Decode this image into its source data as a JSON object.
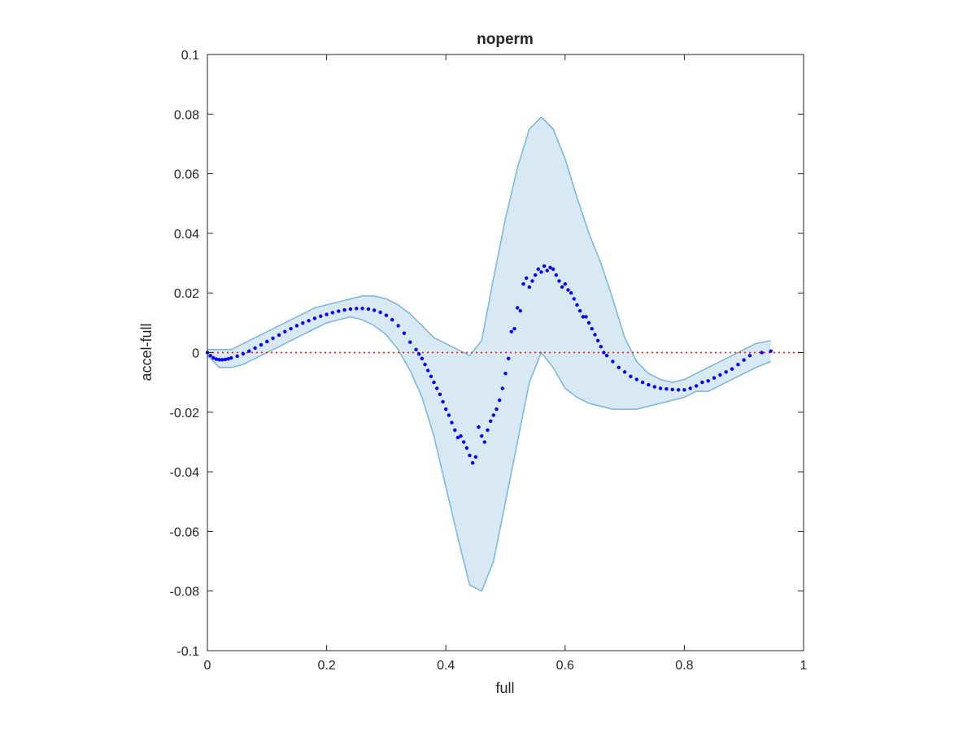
{
  "chart_data": {
    "type": "scatter",
    "title": "noperm",
    "xlabel": "full",
    "ylabel": "accel-full",
    "xlim": [
      0,
      1
    ],
    "ylim": [
      -0.1,
      0.1
    ],
    "xticks": [
      0,
      0.2,
      0.4,
      0.6,
      0.8,
      1
    ],
    "xtick_labels": [
      "0",
      "0.2",
      "0.4",
      "0.6",
      "0.8",
      "1"
    ],
    "yticks": [
      -0.1,
      -0.08,
      -0.06,
      -0.04,
      -0.02,
      0,
      0.02,
      0.04,
      0.06,
      0.08,
      0.1
    ],
    "ytick_labels": [
      "-0.1",
      "-0.08",
      "-0.06",
      "-0.04",
      "-0.02",
      "0",
      "0.02",
      "0.04",
      "0.06",
      "0.08",
      "0.1"
    ],
    "grid": false,
    "legend": "none",
    "reference_line": {
      "y": 0,
      "style": "dotted",
      "color": "#ff0000"
    },
    "series": [
      {
        "kind": "points",
        "color": "#0000ff",
        "x": [
          0.0,
          0.005,
          0.01,
          0.015,
          0.02,
          0.025,
          0.03,
          0.035,
          0.04,
          0.05,
          0.06,
          0.07,
          0.08,
          0.09,
          0.1,
          0.11,
          0.12,
          0.13,
          0.14,
          0.15,
          0.16,
          0.17,
          0.18,
          0.19,
          0.2,
          0.21,
          0.22,
          0.23,
          0.24,
          0.25,
          0.26,
          0.27,
          0.28,
          0.29,
          0.3,
          0.31,
          0.32,
          0.33,
          0.34,
          0.35,
          0.355,
          0.36,
          0.365,
          0.37,
          0.375,
          0.38,
          0.385,
          0.39,
          0.395,
          0.4,
          0.405,
          0.41,
          0.415,
          0.42,
          0.425,
          0.43,
          0.435,
          0.44,
          0.445,
          0.45,
          0.455,
          0.46,
          0.465,
          0.47,
          0.475,
          0.48,
          0.485,
          0.49,
          0.495,
          0.5,
          0.505,
          0.51,
          0.515,
          0.52,
          0.525,
          0.53,
          0.535,
          0.54,
          0.545,
          0.55,
          0.555,
          0.56,
          0.565,
          0.57,
          0.575,
          0.58,
          0.585,
          0.59,
          0.595,
          0.6,
          0.605,
          0.61,
          0.615,
          0.62,
          0.625,
          0.63,
          0.635,
          0.64,
          0.645,
          0.65,
          0.655,
          0.66,
          0.665,
          0.67,
          0.68,
          0.69,
          0.7,
          0.71,
          0.72,
          0.73,
          0.74,
          0.75,
          0.76,
          0.77,
          0.78,
          0.79,
          0.8,
          0.81,
          0.82,
          0.83,
          0.84,
          0.85,
          0.86,
          0.87,
          0.88,
          0.89,
          0.9,
          0.91,
          0.93,
          0.945
        ],
        "y": [
          0.0,
          -0.001,
          -0.0018,
          -0.0022,
          -0.0024,
          -0.0024,
          -0.0023,
          -0.0021,
          -0.0018,
          -0.0012,
          -0.0004,
          0.0005,
          0.0015,
          0.0026,
          0.0037,
          0.0048,
          0.0059,
          0.007,
          0.008,
          0.009,
          0.0099,
          0.0107,
          0.0115,
          0.0122,
          0.0128,
          0.0134,
          0.0139,
          0.0143,
          0.0146,
          0.0148,
          0.0148,
          0.0146,
          0.0142,
          0.0135,
          0.0125,
          0.011,
          0.009,
          0.0065,
          0.0035,
          0.001,
          -0.0005,
          -0.002,
          -0.004,
          -0.006,
          -0.008,
          -0.01,
          -0.012,
          -0.014,
          -0.0165,
          -0.019,
          -0.021,
          -0.0235,
          -0.026,
          -0.0285,
          -0.028,
          -0.03,
          -0.032,
          -0.0345,
          -0.037,
          -0.035,
          -0.025,
          -0.028,
          -0.03,
          -0.026,
          -0.023,
          -0.021,
          -0.019,
          -0.016,
          -0.012,
          -0.007,
          -0.002,
          0.007,
          0.008,
          0.015,
          0.014,
          0.023,
          0.025,
          0.022,
          0.024,
          0.026,
          0.028,
          0.027,
          0.029,
          0.0275,
          0.0285,
          0.028,
          0.026,
          0.024,
          0.022,
          0.023,
          0.021,
          0.02,
          0.018,
          0.016,
          0.014,
          0.012,
          0.012,
          0.01,
          0.008,
          0.006,
          0.004,
          0.002,
          0.0,
          -0.001,
          -0.003,
          -0.005,
          -0.0065,
          -0.008,
          -0.009,
          -0.01,
          -0.0108,
          -0.0115,
          -0.012,
          -0.0122,
          -0.0124,
          -0.0125,
          -0.0125,
          -0.012,
          -0.0112,
          -0.01,
          -0.0095,
          -0.0085,
          -0.0075,
          -0.0065,
          -0.0055,
          -0.004,
          -0.0025,
          -0.001,
          0.0,
          0.0005
        ]
      },
      {
        "kind": "band",
        "color": "#9fc9e4",
        "edge_color": "#78b5db",
        "x": [
          0.0,
          0.02,
          0.04,
          0.06,
          0.08,
          0.1,
          0.12,
          0.14,
          0.16,
          0.18,
          0.2,
          0.22,
          0.24,
          0.26,
          0.28,
          0.3,
          0.32,
          0.34,
          0.36,
          0.38,
          0.4,
          0.42,
          0.44,
          0.46,
          0.48,
          0.5,
          0.52,
          0.54,
          0.56,
          0.58,
          0.6,
          0.62,
          0.64,
          0.66,
          0.68,
          0.7,
          0.72,
          0.74,
          0.76,
          0.78,
          0.8,
          0.82,
          0.84,
          0.86,
          0.88,
          0.9,
          0.92,
          0.945
        ],
        "upper": [
          0.001,
          0.001,
          0.001,
          0.003,
          0.005,
          0.007,
          0.009,
          0.011,
          0.013,
          0.015,
          0.016,
          0.017,
          0.018,
          0.019,
          0.019,
          0.018,
          0.016,
          0.013,
          0.009,
          0.005,
          0.003,
          0.001,
          -0.001,
          0.004,
          0.025,
          0.045,
          0.062,
          0.075,
          0.079,
          0.075,
          0.065,
          0.052,
          0.04,
          0.03,
          0.018,
          0.005,
          -0.003,
          -0.007,
          -0.009,
          -0.01,
          -0.009,
          -0.007,
          -0.005,
          -0.003,
          -0.001,
          0.001,
          0.003,
          0.004
        ],
        "lower": [
          -0.001,
          -0.005,
          -0.005,
          -0.004,
          -0.002,
          0.0,
          0.002,
          0.004,
          0.006,
          0.008,
          0.01,
          0.011,
          0.012,
          0.011,
          0.009,
          0.006,
          0.001,
          -0.006,
          -0.015,
          -0.028,
          -0.045,
          -0.062,
          -0.078,
          -0.08,
          -0.07,
          -0.05,
          -0.03,
          -0.01,
          0.0,
          -0.005,
          -0.012,
          -0.015,
          -0.017,
          -0.018,
          -0.019,
          -0.019,
          -0.019,
          -0.018,
          -0.017,
          -0.016,
          -0.015,
          -0.013,
          -0.013,
          -0.011,
          -0.009,
          -0.007,
          -0.005,
          -0.003
        ]
      }
    ]
  }
}
